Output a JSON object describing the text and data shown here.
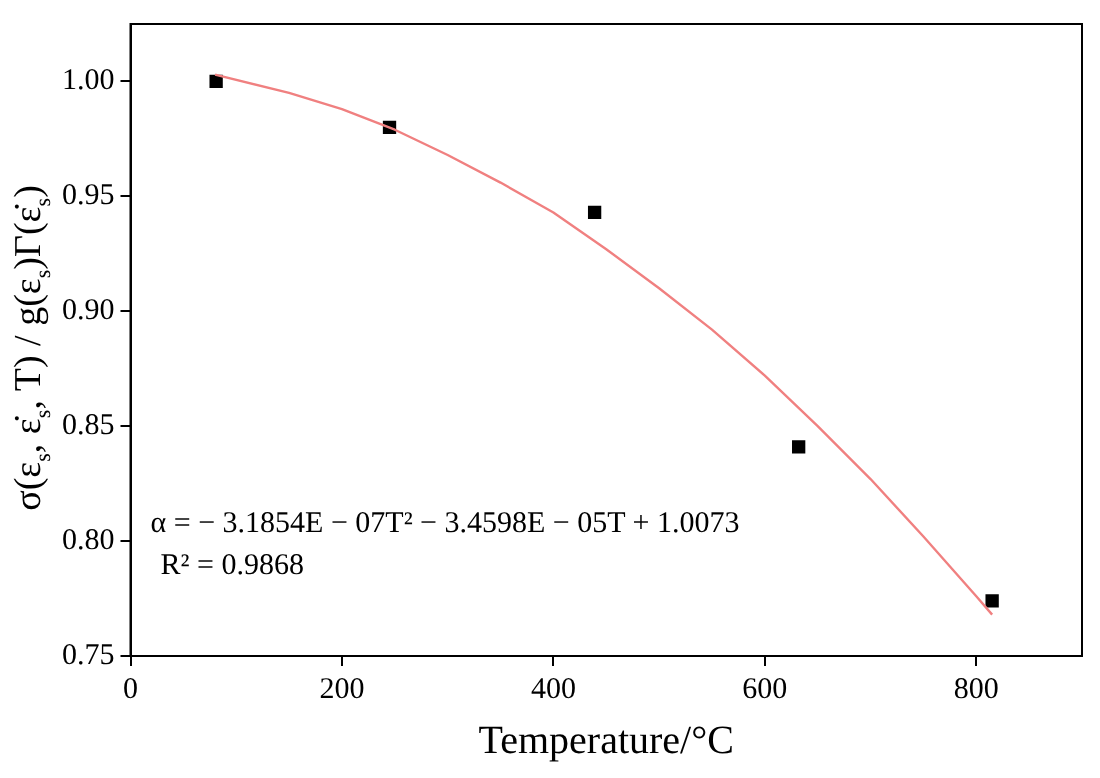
{
  "chart_data": {
    "type": "scatter",
    "xlabel": "Temperature/°C",
    "ylabel": "σ(ε$_{s}$, ε̇$_{s}$, T) / g(ε$_{s}$)Γ(ε̇$_{s}$)",
    "xlim": [
      0,
      900
    ],
    "xticks": [
      0,
      200,
      400,
      600,
      800
    ],
    "ylim": [
      0.75,
      1.025
    ],
    "yticks": [
      {
        "value": 0.75,
        "label": "0.75"
      },
      {
        "value": 0.8,
        "label": "0.80"
      },
      {
        "value": 0.85,
        "label": "0.85"
      },
      {
        "value": 0.9,
        "label": "0.90"
      },
      {
        "value": 0.95,
        "label": "0.95"
      },
      {
        "value": 1.0,
        "label": "1.00"
      }
    ],
    "grid": false,
    "legend": false,
    "marker": "square",
    "series": [
      {
        "color": "#000000",
        "x": [
          81,
          245,
          439,
          632,
          815
        ],
        "values": [
          1.0,
          0.98,
          0.943,
          0.841,
          0.774
        ]
      },
      {
        "type": "line",
        "color": "#f08080",
        "marker": "none",
        "x": [
          80,
          150,
          200,
          250,
          300,
          350,
          400,
          450,
          500,
          550,
          600,
          650,
          700,
          750,
          800,
          815
        ],
        "values": [
          1.003,
          0.995,
          0.988,
          0.979,
          0.968,
          0.956,
          0.943,
          0.927,
          0.91,
          0.892,
          0.872,
          0.85,
          0.827,
          0.802,
          0.776,
          0.768
        ]
      }
    ],
    "annotations": [
      "α = − 3.1854E − 07T² − 3.4598E − 05T + 1.0073",
      "R² = 0.9868"
    ]
  }
}
